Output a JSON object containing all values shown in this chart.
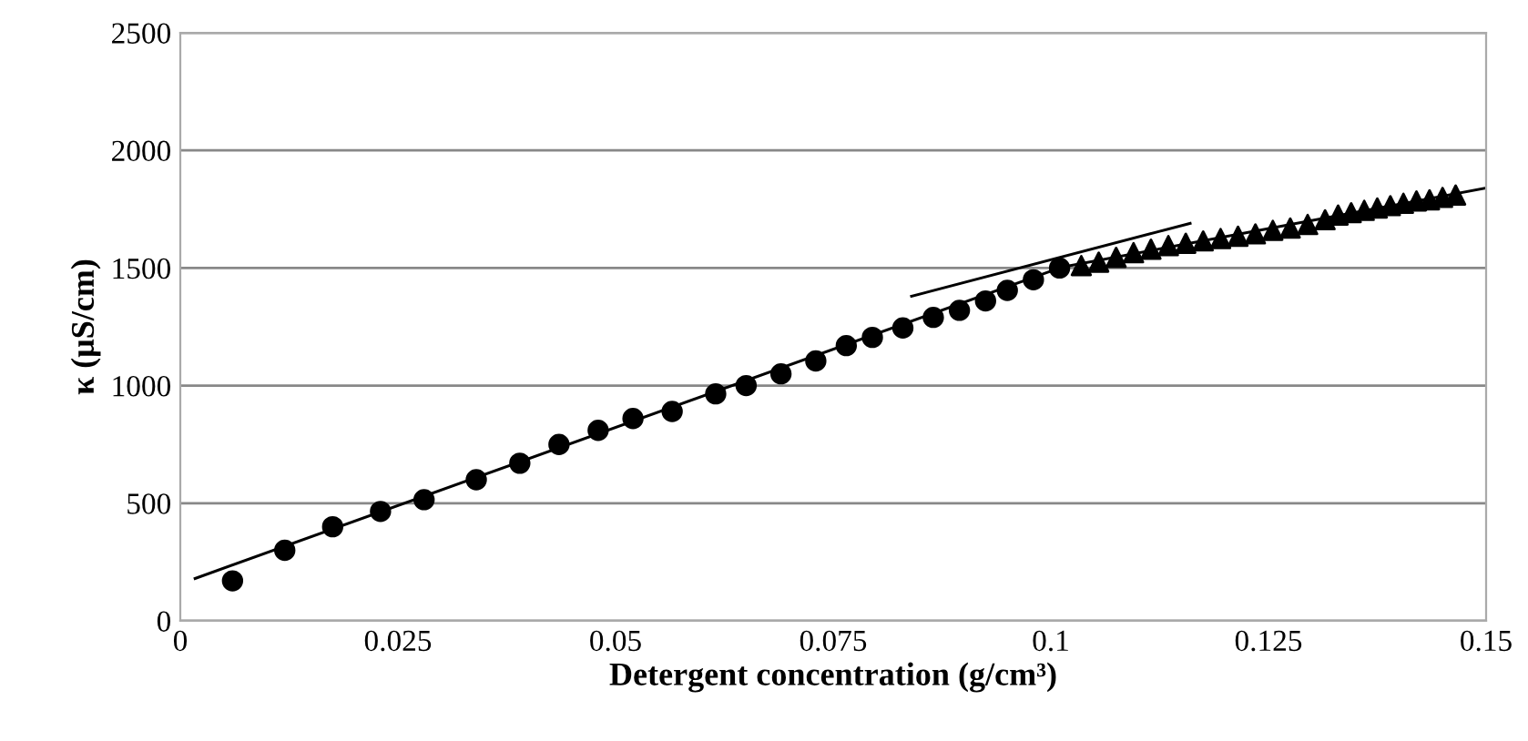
{
  "chart_data": {
    "type": "scatter",
    "xlabel": "Detergent concentration (g/cm³)",
    "ylabel": "κ (μS/cm)",
    "xlim": [
      0,
      0.15
    ],
    "ylim": [
      0,
      2500
    ],
    "xticks": [
      0,
      0.025,
      0.05,
      0.075,
      0.1,
      0.125,
      0.15
    ],
    "yticks": [
      0,
      500,
      1000,
      1500,
      2000,
      2500
    ],
    "grid": "y",
    "legend": false,
    "series": [
      {
        "marker": "circle",
        "color": "#000000",
        "x": [
          0.006,
          0.012,
          0.0175,
          0.023,
          0.028,
          0.034,
          0.039,
          0.0435,
          0.048,
          0.052,
          0.0565,
          0.0615,
          0.065,
          0.069,
          0.073,
          0.0765,
          0.0795,
          0.083,
          0.0865,
          0.0895,
          0.0925,
          0.095,
          0.098,
          0.101
        ],
        "values": [
          170,
          300,
          400,
          465,
          515,
          600,
          670,
          750,
          810,
          860,
          890,
          965,
          1000,
          1050,
          1105,
          1170,
          1205,
          1245,
          1290,
          1320,
          1360,
          1405,
          1450,
          1500
        ]
      },
      {
        "marker": "triangle",
        "color": "#000000",
        "x": [
          0.1035,
          0.1055,
          0.1075,
          0.1095,
          0.1115,
          0.1135,
          0.1155,
          0.1175,
          0.1195,
          0.1215,
          0.1235,
          0.1255,
          0.1275,
          0.1295,
          0.1315,
          0.133,
          0.1345,
          0.136,
          0.1375,
          0.139,
          0.1405,
          0.142,
          0.1435,
          0.145,
          0.1465
        ],
        "values": [
          1510,
          1525,
          1545,
          1565,
          1580,
          1595,
          1605,
          1615,
          1625,
          1635,
          1645,
          1660,
          1670,
          1685,
          1705,
          1725,
          1735,
          1745,
          1755,
          1765,
          1775,
          1785,
          1790,
          1800,
          1810
        ]
      },
      {
        "type": "line",
        "marker": "none",
        "color": "#000000",
        "x": [
          0.0017,
          0.101
        ],
        "values": [
          180,
          1500
        ]
      },
      {
        "type": "line",
        "marker": "none",
        "color": "#000000",
        "x": [
          0.084,
          0.116
        ],
        "values": [
          1380,
          1690
        ]
      },
      {
        "type": "line",
        "marker": "none",
        "color": "#000000",
        "x": [
          0.1,
          0.15
        ],
        "values": [
          1495,
          1840
        ]
      }
    ]
  }
}
